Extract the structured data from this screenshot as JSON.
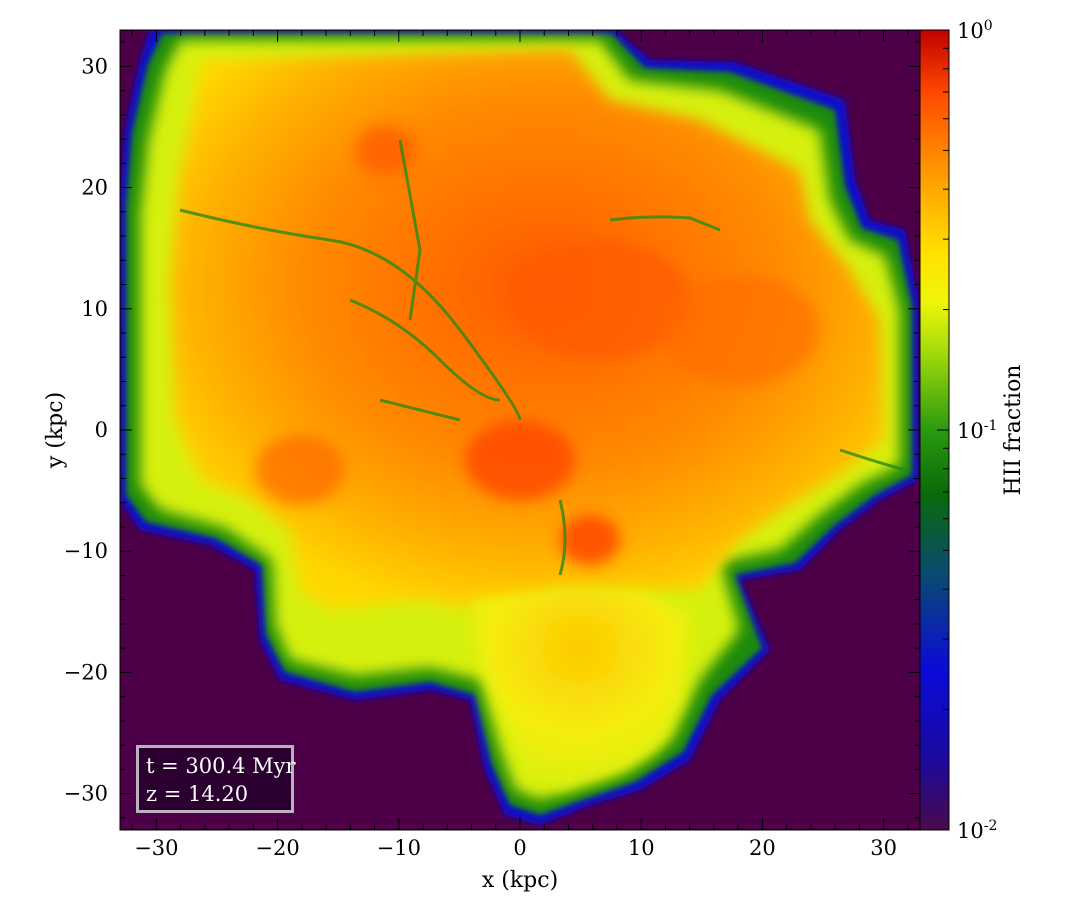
{
  "chart_data": {
    "type": "heatmap",
    "title": "",
    "xlabel": "x  (kpc)",
    "ylabel": "y  (kpc)",
    "xlim": [
      -33,
      33
    ],
    "ylim": [
      -33,
      33
    ],
    "x_ticks": [
      -30,
      -20,
      -10,
      0,
      10,
      20,
      30
    ],
    "y_ticks": [
      -30,
      -20,
      -10,
      0,
      10,
      20,
      30
    ],
    "colorbar": {
      "label": "HII fraction",
      "scale": "log",
      "range": [
        0.01,
        1
      ],
      "ticks": [
        {
          "value": 1,
          "base": "10",
          "exp": "0"
        },
        {
          "value": 0.1,
          "base": "10",
          "exp": "-1"
        },
        {
          "value": 0.01,
          "base": "10",
          "exp": "-2"
        }
      ],
      "colors": [
        "#4a0a4a",
        "#0b0bd8",
        "#0a6a0a",
        "#2a9a10",
        "#dcf20a",
        "#ffe200",
        "#ff8c00",
        "#ff3000",
        "#c00000"
      ]
    },
    "background_color": "#4d0048",
    "annotation": [
      "t = 300.4 Myr",
      "z = 14.20"
    ],
    "description_values": {
      "max_region_fraction": 0.6,
      "outer_region_fraction": 0.02
    }
  }
}
